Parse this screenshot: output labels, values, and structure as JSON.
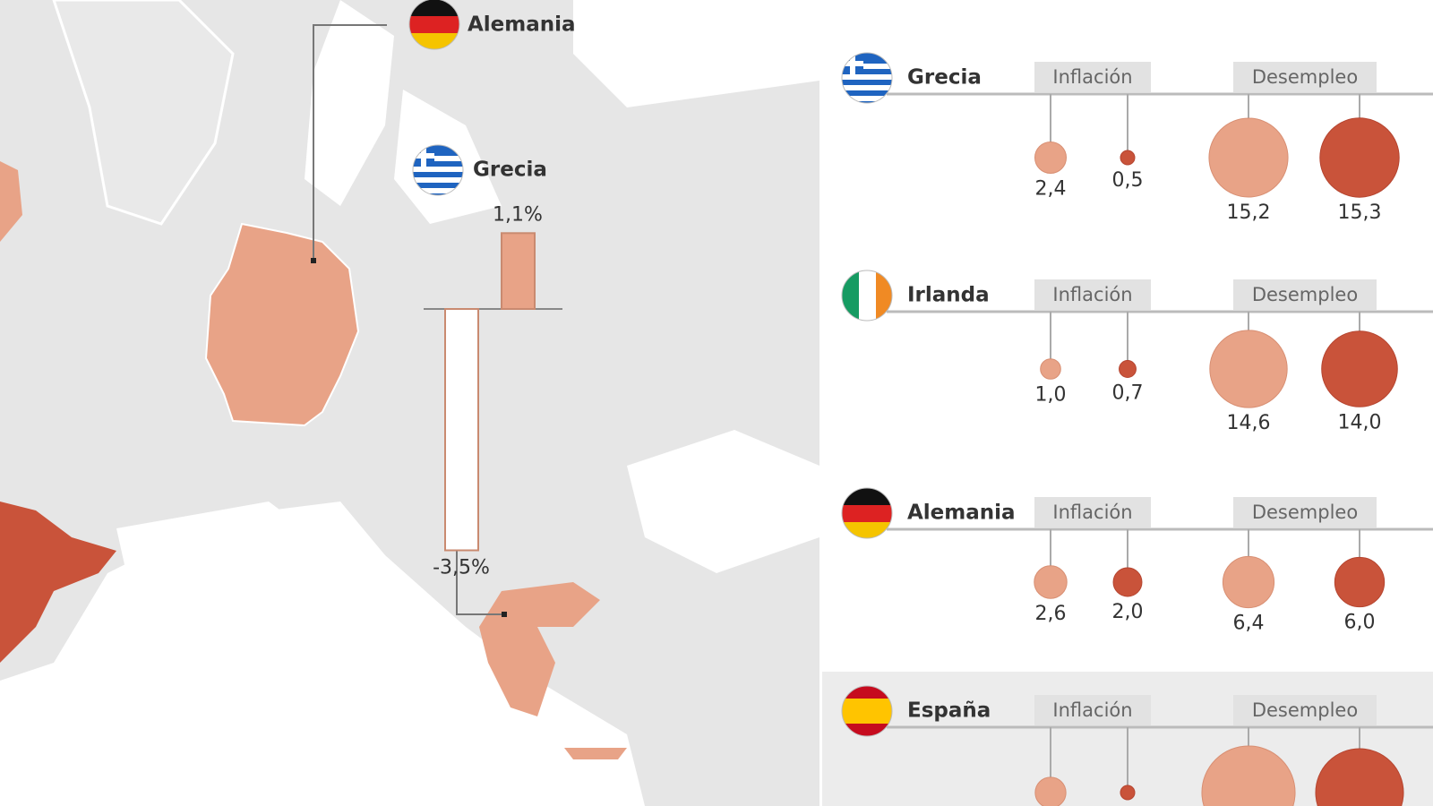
{
  "map": {
    "countries": [
      {
        "name": "Alemania"
      },
      {
        "name": "Grecia"
      }
    ],
    "bars": {
      "values": [
        1.1,
        -3.5
      ],
      "value_labels": [
        "1,1%",
        "-3,5%"
      ]
    }
  },
  "panel": {
    "rows": [
      {
        "name": "Grecia",
        "inflation_header": "Inflación",
        "unemployment_header": "Desempleo",
        "inflation": {
          "values": [
            2.4,
            0.5
          ],
          "value_labels": [
            "2,4",
            "0,5"
          ]
        },
        "unemployment": {
          "values": [
            15.2,
            15.3
          ],
          "value_labels": [
            "15,2",
            "15,3"
          ]
        }
      },
      {
        "name": "Irlanda",
        "inflation_header": "Inflación",
        "unemployment_header": "Desempleo",
        "inflation": {
          "values": [
            1.0,
            0.7
          ],
          "value_labels": [
            "1,0",
            "0,7"
          ]
        },
        "unemployment": {
          "values": [
            14.6,
            14.0
          ],
          "value_labels": [
            "14,6",
            "14,0"
          ]
        }
      },
      {
        "name": "Alemania",
        "inflation_header": "Inflación",
        "unemployment_header": "Desempleo",
        "inflation": {
          "values": [
            2.6,
            2.0
          ],
          "value_labels": [
            "2,6",
            "2,0"
          ]
        },
        "unemployment": {
          "values": [
            6.4,
            6.0
          ],
          "value_labels": [
            "6,4",
            "6,0"
          ]
        }
      },
      {
        "name": "España",
        "inflation_header": "Inflación",
        "unemployment_header": "Desempleo",
        "inflation": {
          "values": [
            2.3,
            0.5
          ]
        },
        "unemployment": {
          "values": [
            21.2,
            18.8
          ]
        }
      }
    ]
  }
}
